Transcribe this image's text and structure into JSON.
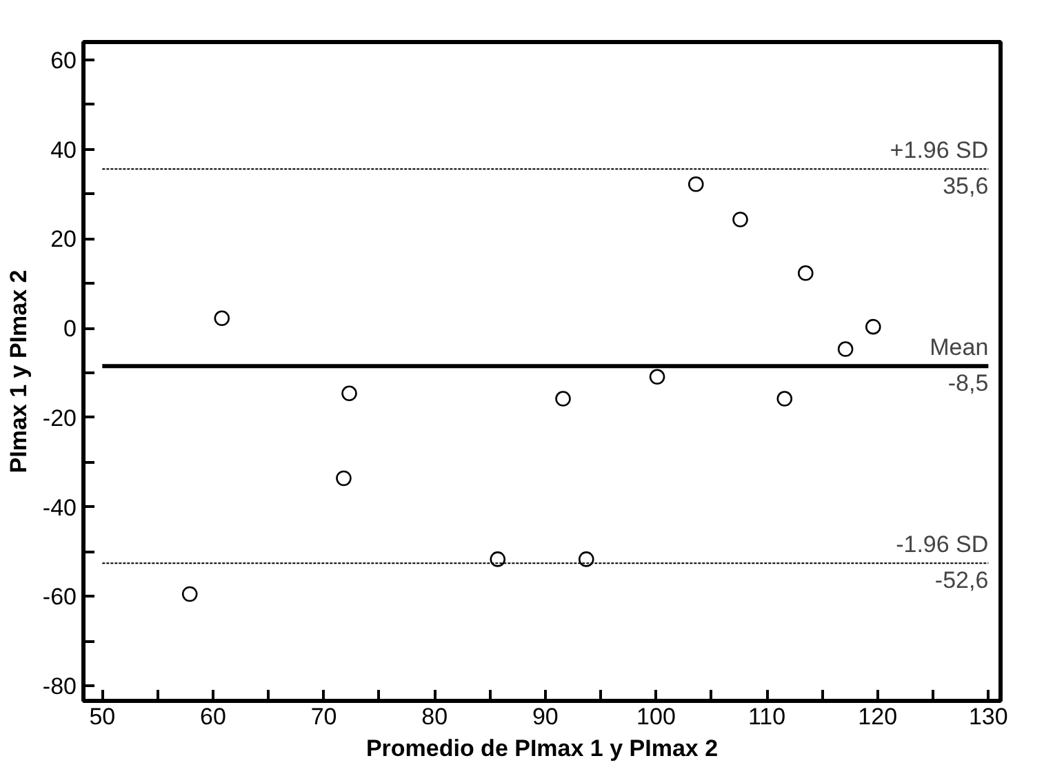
{
  "chart_data": {
    "type": "scatter",
    "xlabel": "Promedio de PImax 1 y PImax 2",
    "ylabel": "PImax 1 y PImax 2",
    "x": [
      57.9,
      60.8,
      71.8,
      72.3,
      85.7,
      91.6,
      93.7,
      100.1,
      103.6,
      107.6,
      111.6,
      113.5,
      117.1,
      119.6
    ],
    "series": [
      {
        "color": "#000000",
        "values": [
          -59.5,
          2.2,
          -33.6,
          -14.6,
          -51.7,
          -15.8,
          -51.7,
          -10.9,
          32.2,
          24.3,
          -15.8,
          12.3,
          -4.7,
          0.3
        ]
      }
    ],
    "marker": "circle",
    "grid": false,
    "xlim": [
      48.3,
      131.1
    ],
    "ylim": [
      -83.4,
      64
    ],
    "xticks": [
      50,
      {
        "value": 55,
        "label": null
      },
      60,
      {
        "value": 65,
        "label": null
      },
      70,
      {
        "value": 75,
        "label": null
      },
      80,
      {
        "value": 85,
        "label": null
      },
      90,
      {
        "value": 95,
        "label": null
      },
      100,
      {
        "value": 105,
        "label": null
      },
      110,
      {
        "value": 115,
        "label": null
      },
      120,
      {
        "value": 125,
        "label": null
      },
      130
    ],
    "yticks": [
      -80,
      {
        "value": -70,
        "label": null
      },
      -60,
      {
        "value": -50,
        "label": null
      },
      -40,
      {
        "value": -30,
        "label": null
      },
      -20,
      {
        "value": -10,
        "label": null
      },
      0,
      {
        "value": 10,
        "label": null
      },
      20,
      {
        "value": 30,
        "label": null
      },
      40,
      {
        "value": 50,
        "label": null
      },
      60
    ],
    "ref_lines": [
      {
        "axis": "y",
        "value": 35.6,
        "label": "+1.96 SD",
        "color": "#000000",
        "line_style": "dashed"
      },
      {
        "axis": "y",
        "value": -8.5,
        "label": "Mean",
        "color": "#000000",
        "line_style": "solid"
      },
      {
        "axis": "y",
        "value": -52.6,
        "label": "-1.96 SD",
        "color": "#000000",
        "line_style": "dashed"
      }
    ],
    "annotations": [
      {
        "text": "35,6",
        "y": 35.6
      },
      {
        "text": "-8,5",
        "y": -8.5
      },
      {
        "text": "-52,6",
        "y": -52.6
      }
    ]
  }
}
